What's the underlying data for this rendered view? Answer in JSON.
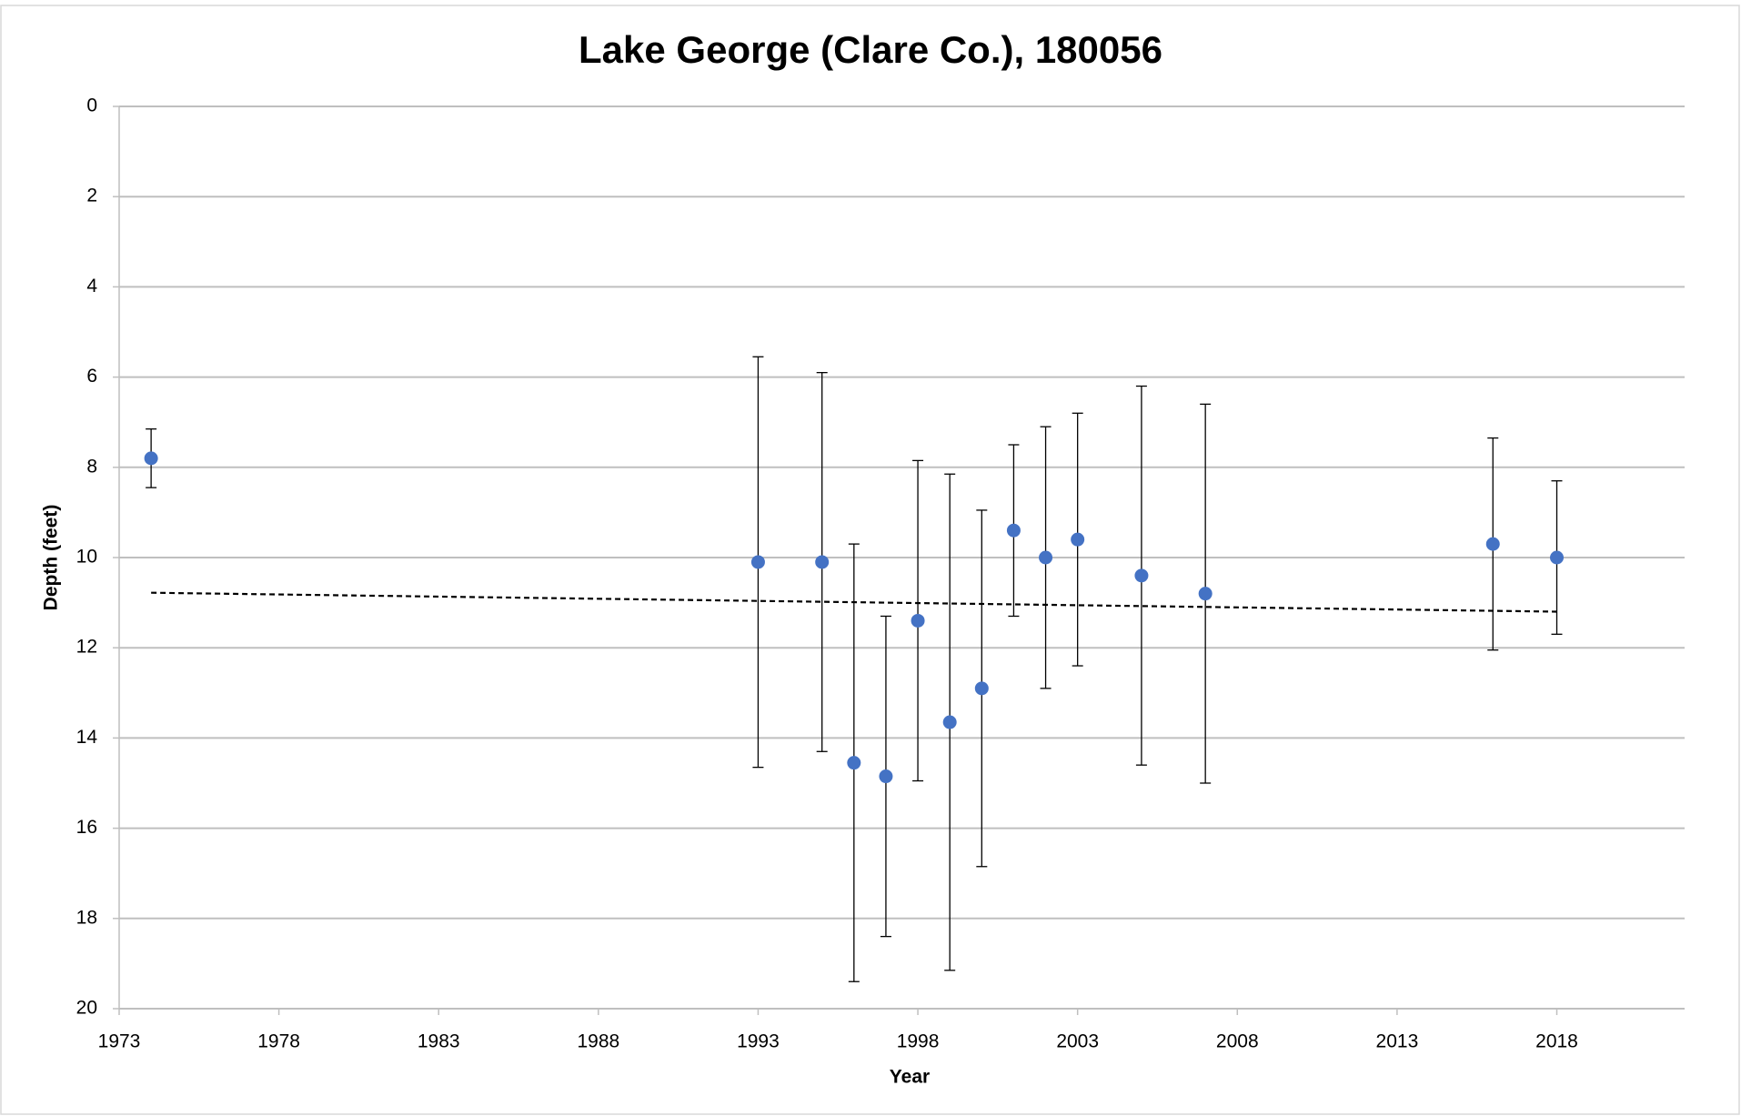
{
  "chart_data": {
    "type": "scatter",
    "title": "Lake George (Clare Co.), 180056",
    "xlabel": "Year",
    "ylabel": "Depth (feet)",
    "x": [
      1974,
      1993,
      1995,
      1996,
      1997,
      1998,
      1999,
      2000,
      2001,
      2002,
      2003,
      2005,
      2007,
      2016,
      2018
    ],
    "series": [
      {
        "color": "#4472c4",
        "values": [
          7.8,
          10.1,
          10.1,
          14.55,
          14.85,
          11.4,
          13.65,
          12.9,
          9.4,
          10.0,
          9.6,
          10.4,
          10.8,
          9.7,
          10.0
        ],
        "errors": [
          0.65,
          4.55,
          4.2,
          4.85,
          3.55,
          3.55,
          5.5,
          3.95,
          1.9,
          2.9,
          2.8,
          4.2,
          4.2,
          2.35,
          1.7
        ]
      }
    ],
    "trendline": {
      "color": "#000000",
      "x": [
        1974,
        2018
      ],
      "values": [
        10.78,
        11.2
      ]
    },
    "xlim": [
      1973,
      2022
    ],
    "xticks": [
      1973,
      1978,
      1983,
      1988,
      1993,
      1998,
      2003,
      2008,
      2013,
      2018
    ],
    "ylim": [
      0,
      20
    ],
    "yticks": [
      0,
      2,
      4,
      6,
      8,
      10,
      12,
      14,
      16,
      18,
      20
    ],
    "yreversed": true,
    "grid": true
  }
}
